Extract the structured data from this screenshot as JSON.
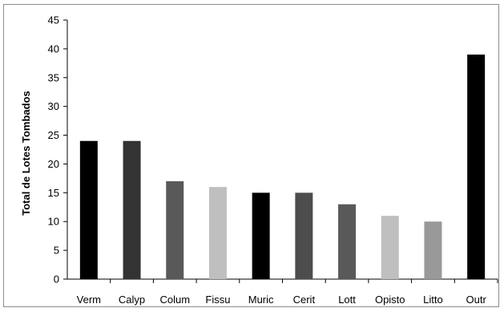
{
  "chart_data": {
    "type": "bar",
    "title": "",
    "xlabel": "",
    "ylabel": "Total de Lotes Tombados",
    "ylim": [
      0,
      45
    ],
    "yticks": [
      0,
      5,
      10,
      15,
      20,
      25,
      30,
      35,
      40,
      45
    ],
    "grid": false,
    "legend": "none",
    "categories": [
      "Verm",
      "Calyp",
      "Colum",
      "Fissu",
      "Muric",
      "Cerit",
      "Lott",
      "Opisto",
      "Litto",
      "Outr"
    ],
    "values": [
      24,
      24,
      17,
      16,
      15,
      15,
      13,
      11,
      10,
      39
    ],
    "colors": [
      "#000000",
      "#333333",
      "#595959",
      "#bfbfbf",
      "#000000",
      "#4d4d4d",
      "#595959",
      "#bfbfbf",
      "#999999",
      "#000000"
    ]
  }
}
